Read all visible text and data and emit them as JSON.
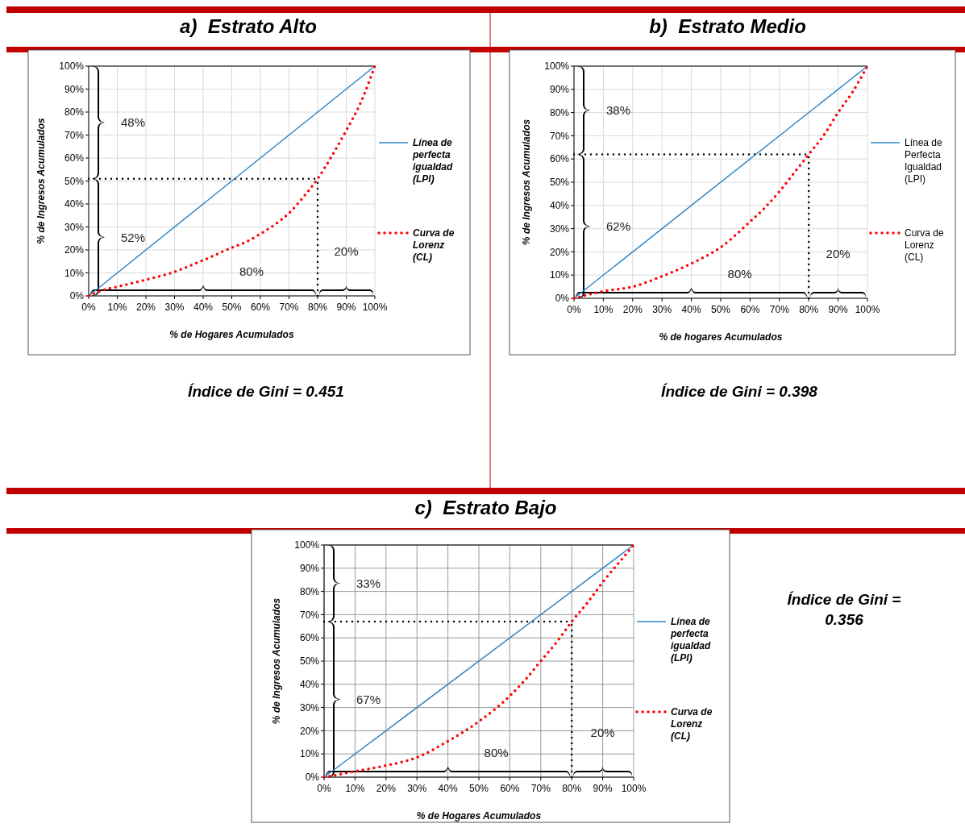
{
  "chart_data": [
    {
      "type": "line",
      "title": "a)  Estrato Alto",
      "xlabel": "% de Hogares Acumulados",
      "ylabel": "% de Ingresos Acumulados",
      "xlim": [
        0,
        100
      ],
      "ylim": [
        0,
        100
      ],
      "xticks": [
        {
          "value": 0,
          "label": "0%"
        },
        {
          "value": 10,
          "label": "10%"
        },
        {
          "value": 20,
          "label": "20%"
        },
        {
          "value": 30,
          "label": "30%"
        },
        {
          "value": 40,
          "label": "40%"
        },
        {
          "value": 50,
          "label": "50%"
        },
        {
          "value": 60,
          "label": "60%"
        },
        {
          "value": 70,
          "label": "70%"
        },
        {
          "value": 80,
          "label": "80%"
        },
        {
          "value": 90,
          "label": "90%"
        },
        {
          "value": 100,
          "label": "100%"
        }
      ],
      "yticks": [
        {
          "value": 0,
          "label": "0%"
        },
        {
          "value": 10,
          "label": "10%"
        },
        {
          "value": 20,
          "label": "20%"
        },
        {
          "value": 30,
          "label": "30%"
        },
        {
          "value": 40,
          "label": "40%"
        },
        {
          "value": 50,
          "label": "50%"
        },
        {
          "value": 60,
          "label": "60%"
        },
        {
          "value": 70,
          "label": "70%"
        },
        {
          "value": 80,
          "label": "80%"
        },
        {
          "value": 90,
          "label": "90%"
        },
        {
          "value": 100,
          "label": "100%"
        }
      ],
      "grid": true,
      "legend": "right",
      "series": [
        {
          "name": "Línea de perfecta igualdad (LPI)",
          "color": "#2e86c8",
          "line_style": "solid",
          "x": [
            0,
            100
          ],
          "values": [
            0,
            100
          ]
        },
        {
          "name": "Curva de Lorenz (CL)",
          "color": "#ff0000",
          "line_style": "dotted",
          "x": [
            0,
            5,
            10,
            20,
            30,
            40,
            50,
            55,
            60,
            65,
            70,
            75,
            80,
            85,
            90,
            95,
            100
          ],
          "values": [
            0,
            2.5,
            4,
            7,
            10.5,
            15.5,
            21,
            23.5,
            27,
            31,
            36,
            43,
            51,
            61,
            72,
            84,
            100
          ]
        }
      ],
      "ref_lines": [
        {
          "axis": "y",
          "value": 51,
          "color": "#000000",
          "line_style": "dotted"
        },
        {
          "axis": "x",
          "value": 80,
          "color": "#000000",
          "line_style": "dotted"
        }
      ],
      "annotations": [
        "48%",
        "52%",
        "80%",
        "20%",
        "Índice de Gini = 0.451"
      ]
    },
    {
      "type": "line",
      "title": "b)  Estrato Medio",
      "xlabel": "% de hogares Acumulados",
      "ylabel": "% de Ingresos Acumulados",
      "xlim": [
        0,
        100
      ],
      "ylim": [
        0,
        100
      ],
      "xticks": [
        {
          "value": 0,
          "label": "0%"
        },
        {
          "value": 10,
          "label": "10%"
        },
        {
          "value": 20,
          "label": "20%"
        },
        {
          "value": 30,
          "label": "30%"
        },
        {
          "value": 40,
          "label": "40%"
        },
        {
          "value": 50,
          "label": "50%"
        },
        {
          "value": 60,
          "label": "60%"
        },
        {
          "value": 70,
          "label": "70%"
        },
        {
          "value": 80,
          "label": "80%"
        },
        {
          "value": 90,
          "label": "90%"
        },
        {
          "value": 100,
          "label": "100%"
        }
      ],
      "yticks": [
        {
          "value": 0,
          "label": "0%"
        },
        {
          "value": 10,
          "label": "10%"
        },
        {
          "value": 20,
          "label": "20%"
        },
        {
          "value": 30,
          "label": "30%"
        },
        {
          "value": 40,
          "label": "40%"
        },
        {
          "value": 50,
          "label": "50%"
        },
        {
          "value": 60,
          "label": "60%"
        },
        {
          "value": 70,
          "label": "70%"
        },
        {
          "value": 80,
          "label": "80%"
        },
        {
          "value": 90,
          "label": "90%"
        },
        {
          "value": 100,
          "label": "100%"
        }
      ],
      "grid": true,
      "legend": "right",
      "series": [
        {
          "name": "Línea de Perfecta Igualdad (LPI)",
          "color": "#2e86c8",
          "line_style": "solid",
          "x": [
            0,
            100
          ],
          "values": [
            0,
            100
          ]
        },
        {
          "name": "Curva de Lorenz (CL)",
          "color": "#ff0000",
          "line_style": "dotted",
          "x": [
            0,
            10,
            20,
            30,
            40,
            50,
            60,
            65,
            70,
            75,
            80,
            85,
            90,
            95,
            100
          ],
          "values": [
            0,
            3,
            5,
            9.5,
            15,
            22,
            33,
            39,
            46,
            54,
            62,
            70,
            80,
            89,
            100
          ]
        }
      ],
      "ref_lines": [
        {
          "axis": "y",
          "value": 62,
          "color": "#000000",
          "line_style": "dotted"
        },
        {
          "axis": "x",
          "value": 80,
          "color": "#000000",
          "line_style": "dotted"
        }
      ],
      "annotations": [
        "38%",
        "62%",
        "80%",
        "20%",
        "Índice de Gini = 0.398"
      ]
    },
    {
      "type": "line",
      "title": "c)  Estrato Bajo",
      "xlabel": "% de Hogares Acumulados",
      "ylabel": "% de Ingresos Acumulados",
      "xlim": [
        0,
        100
      ],
      "ylim": [
        0,
        100
      ],
      "xticks": [
        {
          "value": 0,
          "label": "0%"
        },
        {
          "value": 10,
          "label": "10%"
        },
        {
          "value": 20,
          "label": "20%"
        },
        {
          "value": 30,
          "label": "30%"
        },
        {
          "value": 40,
          "label": "40%"
        },
        {
          "value": 50,
          "label": "50%"
        },
        {
          "value": 60,
          "label": "60%"
        },
        {
          "value": 70,
          "label": "70%"
        },
        {
          "value": 80,
          "label": "80%"
        },
        {
          "value": 90,
          "label": "90%"
        },
        {
          "value": 100,
          "label": "100%"
        }
      ],
      "yticks": [
        {
          "value": 0,
          "label": "0%"
        },
        {
          "value": 10,
          "label": "10%"
        },
        {
          "value": 20,
          "label": "20%"
        },
        {
          "value": 30,
          "label": "30%"
        },
        {
          "value": 40,
          "label": "40%"
        },
        {
          "value": 50,
          "label": "50%"
        },
        {
          "value": 60,
          "label": "60%"
        },
        {
          "value": 70,
          "label": "70%"
        },
        {
          "value": 80,
          "label": "80%"
        },
        {
          "value": 90,
          "label": "90%"
        },
        {
          "value": 100,
          "label": "100%"
        }
      ],
      "grid": true,
      "legend": "right",
      "series": [
        {
          "name": "Línea de perfecta igualdad (LPI)",
          "color": "#2e86c8",
          "line_style": "solid",
          "x": [
            0,
            100
          ],
          "values": [
            0,
            100
          ]
        },
        {
          "name": "Curva de Lorenz (CL)",
          "color": "#ff0000",
          "line_style": "dotted",
          "x": [
            0,
            10,
            20,
            30,
            40,
            50,
            60,
            65,
            70,
            75,
            80,
            85,
            90,
            95,
            100
          ],
          "values": [
            0,
            2.5,
            5,
            8.5,
            15.5,
            24,
            35,
            42,
            50,
            58,
            67,
            75,
            84,
            92,
            100
          ]
        }
      ],
      "ref_lines": [
        {
          "axis": "y",
          "value": 67,
          "color": "#000000",
          "line_style": "dotted"
        },
        {
          "axis": "x",
          "value": 80,
          "color": "#000000",
          "line_style": "dotted"
        }
      ],
      "annotations": [
        "33%",
        "67%",
        "80%",
        "20%",
        "Índice de Gini = 0.356"
      ]
    }
  ]
}
